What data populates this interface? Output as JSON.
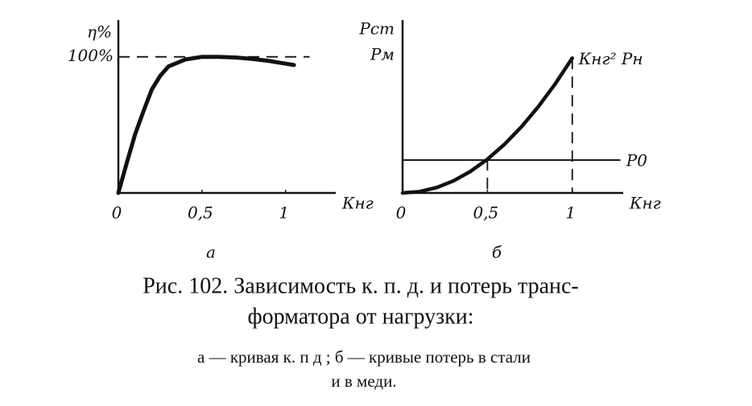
{
  "chart_data": [
    {
      "type": "line",
      "panel_label": "а",
      "x_label": "Кнг",
      "y_label": "η%",
      "xlim": [
        0,
        1.3
      ],
      "ylim": [
        0,
        127
      ],
      "xticks": [
        0,
        {
          "value": 0.5,
          "label": "0,5"
        },
        1
      ],
      "yticks": [
        {
          "value": 100,
          "label": "100%"
        }
      ],
      "grid": true,
      "series": [
        {
          "name": null,
          "color": "#111111",
          "x": [
            0,
            0.05,
            0.1,
            0.15,
            0.2,
            0.25,
            0.3,
            0.4,
            0.5,
            0.6,
            0.7,
            0.8,
            0.9,
            1.0,
            1.05
          ],
          "values": [
            0,
            22,
            43,
            60,
            76,
            86,
            93,
            98,
            100,
            100,
            99.5,
            98.5,
            97,
            95,
            94
          ]
        }
      ]
    },
    {
      "type": "line",
      "panel_label": "б",
      "x_label": "Кнг",
      "y_label": [
        "Pст",
        "Pм"
      ],
      "xlim": [
        0,
        1.3
      ],
      "ylim": [
        0,
        100
      ],
      "xticks": [
        0,
        {
          "value": 0.5,
          "label": "0,5"
        },
        1
      ],
      "drop_lines": true,
      "series": [
        {
          "name": "Кнг² Pн",
          "color": "#111111",
          "x": [
            0,
            0.1,
            0.2,
            0.3,
            0.4,
            0.5,
            0.6,
            0.7,
            0.8,
            0.9,
            1.0
          ],
          "values": [
            0,
            0.78,
            3.12,
            7.02,
            12.48,
            19.5,
            28.08,
            38.22,
            49.92,
            63.18,
            78
          ]
        },
        {
          "name": "P0",
          "color": "#111111",
          "x": [
            0,
            1.28
          ],
          "values": [
            19,
            19
          ]
        }
      ]
    }
  ],
  "caption": {
    "lines": [
      "Рис. 102. Зависимость к. п. д. и потерь транс-",
      "форматора от нагрузки:"
    ],
    "legend": [
      "а — кривая к. п д ; б — кривые потерь в стали",
      "и в меди."
    ]
  }
}
